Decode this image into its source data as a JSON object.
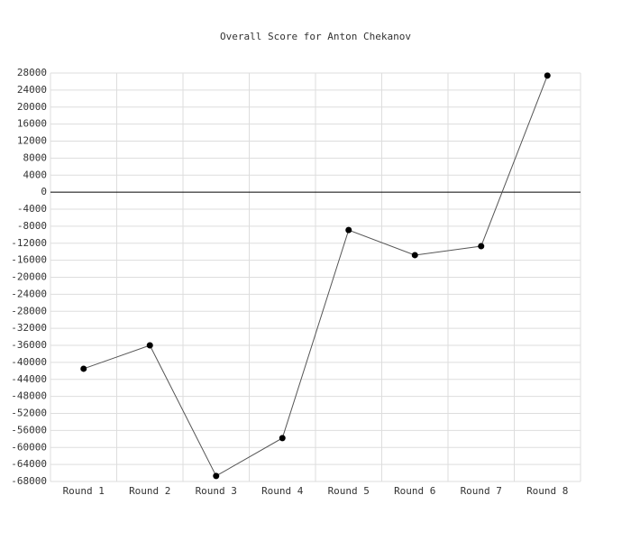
{
  "chart_data": {
    "type": "line",
    "title": "Overall Score for Anton Chekanov",
    "categories": [
      "Round 1",
      "Round 2",
      "Round 3",
      "Round 4",
      "Round 5",
      "Round 6",
      "Round 7",
      "Round 8"
    ],
    "series": [
      {
        "name": "Overall Score",
        "color": "#000000",
        "values": [
          -41500,
          -36000,
          -66700,
          -57800,
          -8900,
          -14800,
          -12700,
          27400
        ]
      }
    ],
    "ylim": [
      -68000,
      28000
    ],
    "yticks": [
      -68000,
      -64000,
      -60000,
      -56000,
      -52000,
      -48000,
      -44000,
      -40000,
      -36000,
      -32000,
      -28000,
      -24000,
      -20000,
      -16000,
      -12000,
      -8000,
      -4000,
      0,
      4000,
      8000,
      12000,
      16000,
      20000,
      24000,
      28000
    ],
    "grid": true
  }
}
